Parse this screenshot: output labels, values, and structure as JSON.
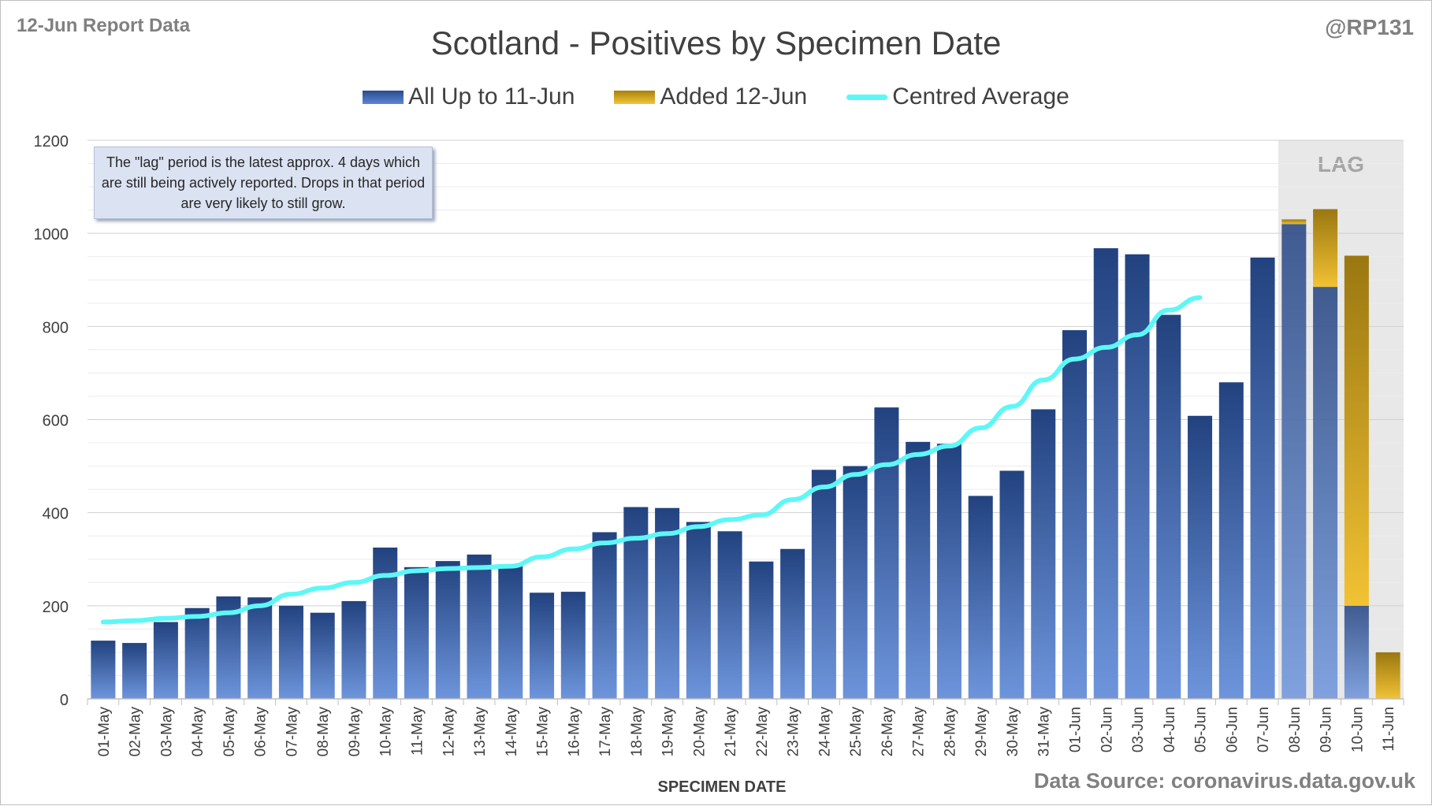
{
  "report_label": "12-Jun Report Data",
  "author_handle": "@RP131",
  "source": "Data Source: coronavirus.data.gov.uk",
  "annotation": "The \"lag\" period is the latest approx. 4 days which are still being actively reported.  Drops in that period are very likely to still grow.",
  "lag_label": "LAG",
  "colors": {
    "base": "#2f56a3",
    "added": "#e9b823",
    "average": "#5ef7f7",
    "lag_shade": "#e8e8e8"
  },
  "chart_data": {
    "type": "bar",
    "stacked": true,
    "title": "Scotland - Positives by Specimen Date",
    "xlabel": "SPECIMEN DATE",
    "ylabel": "",
    "ylim": [
      0,
      1200
    ],
    "yticks": [
      0,
      200,
      400,
      600,
      800,
      1000,
      1200
    ],
    "grid": true,
    "legend_position": "top",
    "categories": [
      "01-May",
      "02-May",
      "03-May",
      "04-May",
      "05-May",
      "06-May",
      "07-May",
      "08-May",
      "09-May",
      "10-May",
      "11-May",
      "12-May",
      "13-May",
      "14-May",
      "15-May",
      "16-May",
      "17-May",
      "18-May",
      "19-May",
      "20-May",
      "21-May",
      "22-May",
      "23-May",
      "24-May",
      "25-May",
      "26-May",
      "27-May",
      "28-May",
      "29-May",
      "30-May",
      "31-May",
      "01-Jun",
      "02-Jun",
      "03-Jun",
      "04-Jun",
      "05-Jun",
      "06-Jun",
      "07-Jun",
      "08-Jun",
      "09-Jun",
      "10-Jun",
      "11-Jun"
    ],
    "lag_categories": [
      "08-Jun",
      "09-Jun",
      "10-Jun",
      "11-Jun"
    ],
    "series": [
      {
        "name": "All Up to 11-Jun",
        "kind": "bar",
        "values": [
          125,
          120,
          165,
          195,
          220,
          218,
          200,
          185,
          210,
          325,
          283,
          296,
          310,
          285,
          228,
          230,
          358,
          412,
          410,
          380,
          360,
          295,
          322,
          492,
          500,
          626,
          552,
          548,
          436,
          490,
          622,
          792,
          968,
          955,
          825,
          608,
          680,
          948,
          1020,
          885,
          200,
          0
        ]
      },
      {
        "name": "Added 12-Jun",
        "kind": "bar",
        "values": [
          0,
          0,
          0,
          0,
          0,
          0,
          0,
          0,
          0,
          0,
          0,
          0,
          0,
          0,
          0,
          0,
          0,
          0,
          0,
          0,
          0,
          0,
          0,
          0,
          0,
          0,
          0,
          0,
          0,
          0,
          0,
          0,
          0,
          0,
          0,
          0,
          0,
          0,
          10,
          167,
          752,
          100
        ]
      },
      {
        "name": "Centred Average",
        "kind": "line",
        "values": [
          165,
          168,
          173,
          177,
          185,
          200,
          225,
          238,
          250,
          265,
          275,
          280,
          282,
          285,
          305,
          322,
          335,
          345,
          355,
          370,
          385,
          395,
          428,
          455,
          482,
          503,
          525,
          543,
          582,
          628,
          685,
          730,
          755,
          782,
          835,
          862,
          null,
          null,
          null,
          null,
          null,
          null
        ]
      }
    ]
  }
}
